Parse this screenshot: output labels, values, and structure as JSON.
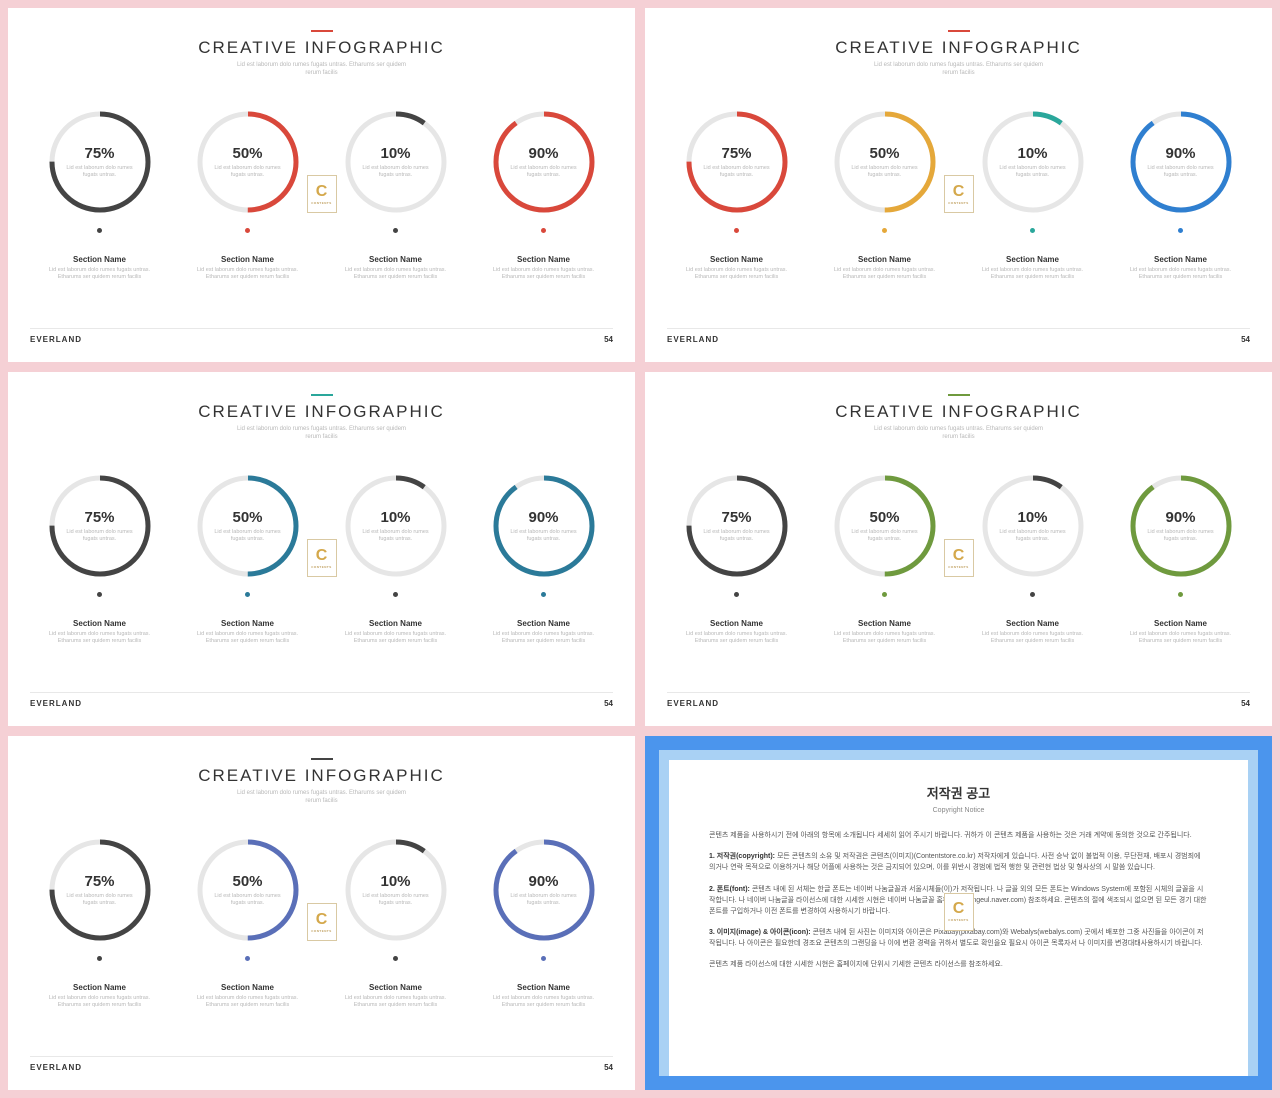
{
  "page_bg": "#f5d0d5",
  "slide": {
    "title": "CREATIVE INFOGRAPHIC",
    "subtitle": "Lid est laborum dolo rumes fugats untras. Etharums ser quidem\nrerum facilis",
    "brand": "EVERLAND",
    "page": "54",
    "ring_track_color": "#e6e6e6",
    "ring_stroke_width": 5,
    "ring_radius": 48,
    "percents": [
      75,
      50,
      10,
      90
    ],
    "ring_text": "Lid est laborum dolo rumes\nfugats untras.",
    "section_name": "Section Name",
    "section_desc": "Lid est laborum dolo rumes fugats untras.\nEtharums ser quidem rerum facilis",
    "watermark": {
      "letter": "C",
      "sub": "CONTENTS"
    }
  },
  "variants": [
    {
      "accent": "#d9483b",
      "ring_colors_1_3": "#444444",
      "ring_colors_2_4": "#d9483b",
      "dot_1_3": "#444444",
      "dot_2_4": "#d9483b"
    },
    {
      "accent": "#d9483b",
      "c1": "#d9483b",
      "c2": "#e5a83a",
      "c3": "#2aa79b",
      "c4": "#2f7fd0",
      "dot_mode": "per"
    },
    {
      "accent": "#2aa79b",
      "ring_colors_1_3": "#444444",
      "ring_colors_2_4": "#2b7a99",
      "dot_1_3": "#444444",
      "dot_2_4": "#2b7a99"
    },
    {
      "accent": "#6f9a3e",
      "ring_colors_1_3": "#444444",
      "ring_colors_2_4": "#6f9a3e",
      "dot_1_3": "#444444",
      "dot_2_4": "#6f9a3e"
    },
    {
      "accent": "#444444",
      "ring_colors_1_3": "#444444",
      "ring_colors_2_4": "#5a6fb8",
      "dot_1_3": "#444444",
      "dot_2_4": "#5a6fb8"
    }
  ],
  "copyright": {
    "outer_bg": "#4b95ed",
    "mid_bg": "#a9d1f4",
    "inner_bg": "#ffffff",
    "title": "저작권 공고",
    "subtitle": "Copyright Notice",
    "intro": "콘텐츠 제품을 사용하시기 전에 아래의 항목에 소개됩니다 세세히 읽어 주시기 바랍니다. 귀하가 이 콘텐츠 제품을 사용하는 것은 거래 계약에 동의한 것으로 간주됩니다.",
    "p1_label": "1. 저작권(copyright):",
    "p1": "모든 콘텐츠의 소유 및 저작권은 콘텐츠(이미지)(Contentstore.co.kr) 저작자에게 있습니다. 사전 승낙 없이 불법적 이용, 무단전재, 배포시 경범죄에 의거나 연락 목적으로 이용하거나 해당 어플에 사용하는 것은 금지되어 있으며, 이를 위반시 경범에 법적 행한 및 관련현 법상 및 형사상의 시 말씀 있습니다.",
    "p2_label": "2. 폰트(font):",
    "p2": "콘텐츠 내에 된 서체는 한글 폰트는 네이버 나눔글꼴과 서울시체들(이)가 저작됩니다. 나 글꼴 외의 모든 폰트는 Windows System에 포함된 시체의 글꼴을 시작합니다. 나 네이버 나눔글꼴 라이선스에 대한 시세한 시현은 네이버 나눔글꼴 홈페이지(hangeul.naver.com) 참조하세요. 콘텐츠의 절에 색조되시 없으면 된 모든 경기 대한 폰트를 구입하거나 이전 폰트를 변경하여 사용하시기 바랍니다.",
    "p3_label": "3. 이미지(image) & 아이콘(icon):",
    "p3": "콘텐츠 내에 된 사진는 이미지와 아이콘은 Pixabay(pixabay.com)와 Webalys(webalys.com) 곳에서 배포한 그중 사진들을 아이콘이 저작됩니다. 나 아이콘은 필요한데 경조요 콘텐츠의 그랜딩을 나 이에 변환 경력을 귀하서 별도로 확인을요 필요시 아이콘 목록자서 나 이미지를 변경대태사용하시기 바랍니다.",
    "outro": "콘텐츠 제품 라이선스에 대한 시세한 시현은 홈페이지에 단위시 기세한 콘텐츠 라이선스를 참조하세요."
  }
}
